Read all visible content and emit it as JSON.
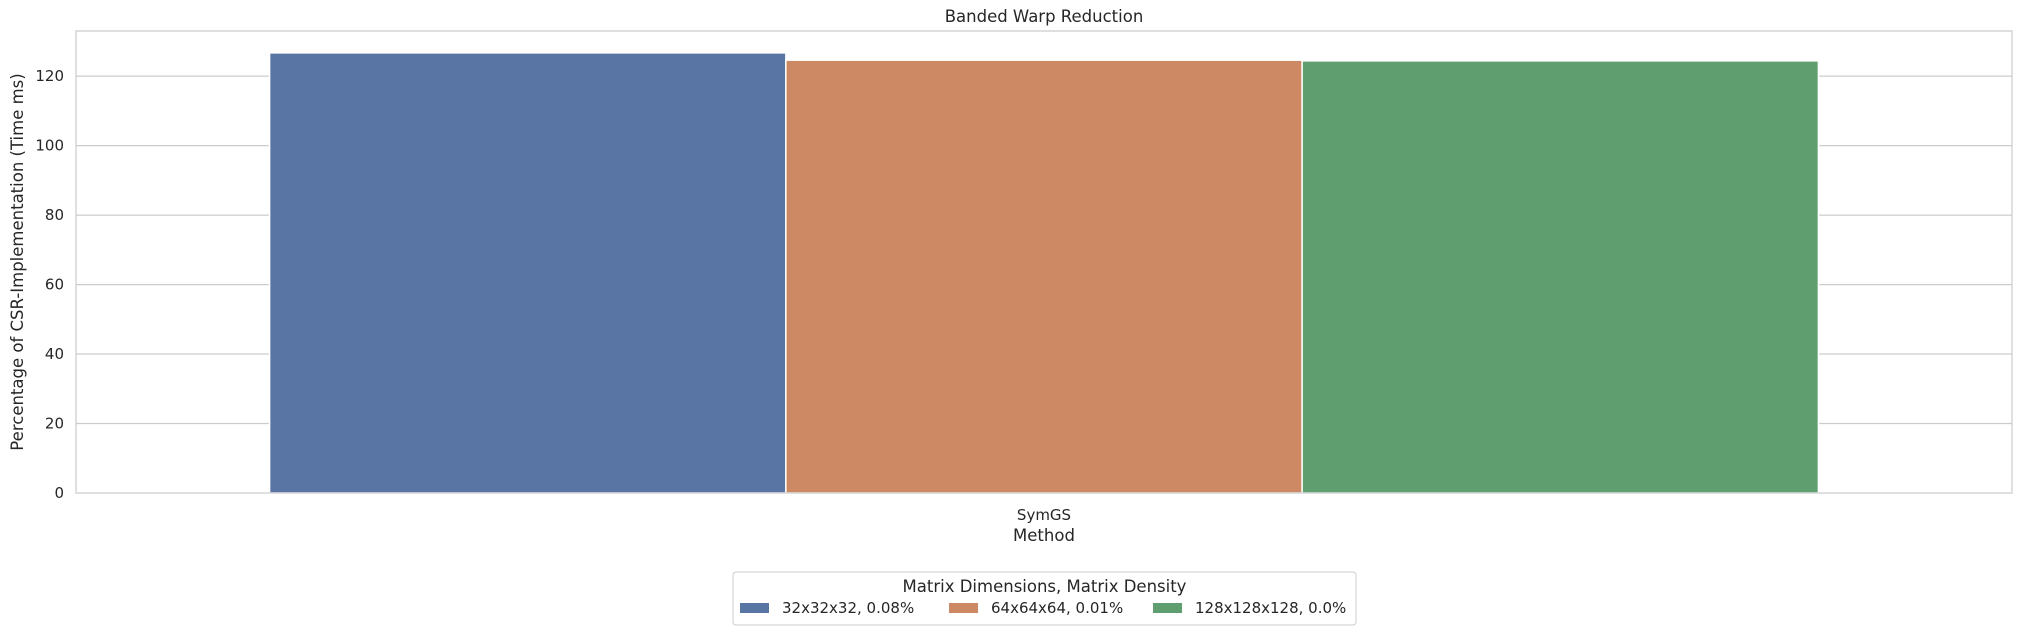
{
  "chart_data": {
    "type": "bar",
    "title": "Banded Warp Reduction",
    "xlabel": "Method",
    "ylabel": "Percentage of CSR-Implementation (Time ms)",
    "categories": [
      "SymGS"
    ],
    "ylim": [
      0,
      133
    ],
    "yticks": [
      0,
      20,
      40,
      60,
      80,
      100,
      120
    ],
    "grid": true,
    "legend_title": "Matrix Dimensions, Matrix Density",
    "legend_position": "bottom-center",
    "series": [
      {
        "name": "32x32x32, 0.08%",
        "color": "#5875a4",
        "values": [
          126.7
        ]
      },
      {
        "name": "64x64x64, 0.01%",
        "color": "#cc8963",
        "values": [
          124.6
        ]
      },
      {
        "name": "128x128x128, 0.0%",
        "color": "#5f9e6e",
        "values": [
          124.4
        ]
      }
    ]
  }
}
